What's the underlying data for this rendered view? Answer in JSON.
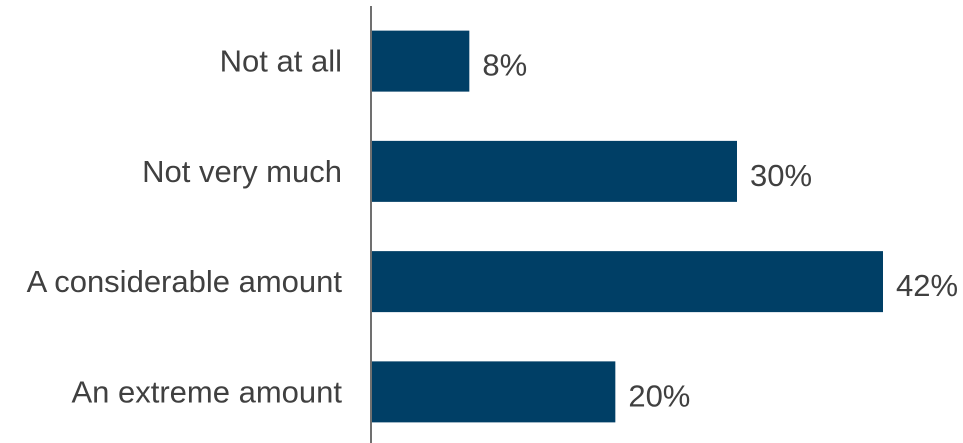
{
  "chart_data": {
    "type": "bar",
    "orientation": "horizontal",
    "categories": [
      "Not at all",
      "Not very much",
      "A considerable amount",
      "An extreme amount"
    ],
    "values": [
      8,
      30,
      42,
      20
    ],
    "value_labels": [
      "8%",
      "30%",
      "42%",
      "20%"
    ],
    "unit": "%",
    "title": "",
    "xlabel": "",
    "ylabel": "",
    "xlim": [
      0,
      42
    ],
    "grid": false,
    "legend": "none",
    "colors": {
      "bar": "#003f66",
      "text": "#404040",
      "axis": "#404040"
    }
  }
}
